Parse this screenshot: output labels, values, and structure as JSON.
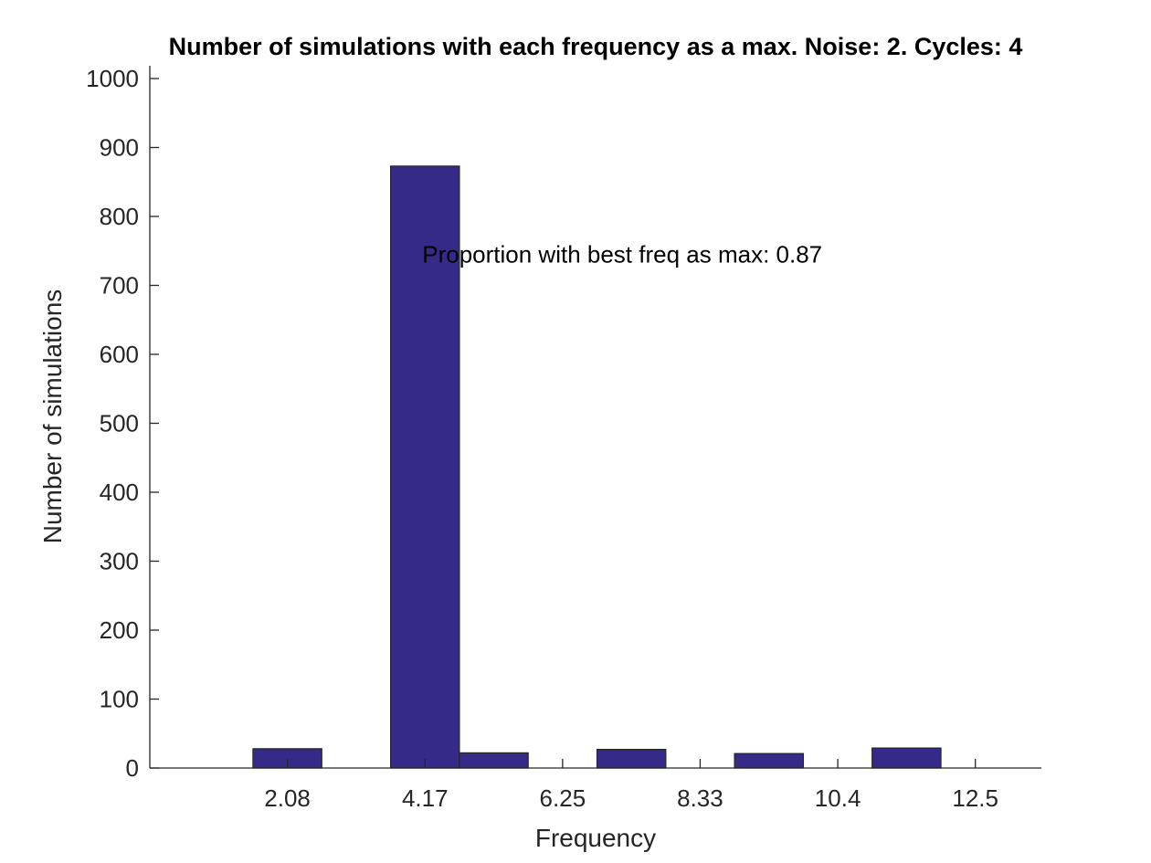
{
  "chart_data": {
    "type": "bar",
    "title": "Number of simulations with each frequency as a max. Noise: 2. Cycles: 4",
    "xlabel": "Frequency",
    "ylabel": "Number of simulations",
    "bar_color": "#352a87",
    "bar_edge_color": "#262626",
    "axis_color": "#262626",
    "grid": false,
    "legend": "none",
    "x_tick_values": [
      2.083,
      4.167,
      6.25,
      8.333,
      10.417,
      12.5
    ],
    "x_tick_labels": [
      "2.08",
      "4.17",
      "6.25",
      "8.33",
      "10.4",
      "12.5"
    ],
    "xlim": [
      0,
      13.5
    ],
    "y_ticks": [
      0,
      100,
      200,
      300,
      400,
      500,
      600,
      700,
      800,
      900,
      1000
    ],
    "ylim": [
      0,
      1000
    ],
    "bars": [
      {
        "x": 2.083,
        "value": 28
      },
      {
        "x": 4.167,
        "value": 873
      },
      {
        "x": 5.208,
        "value": 22
      },
      {
        "x": 7.292,
        "value": 27
      },
      {
        "x": 9.375,
        "value": 21
      },
      {
        "x": 11.458,
        "value": 29
      }
    ],
    "bar_width": 1.042,
    "annotation": {
      "text": "Proportion with best freq as max: 0.87",
      "x": 4.167,
      "y": 745
    }
  }
}
